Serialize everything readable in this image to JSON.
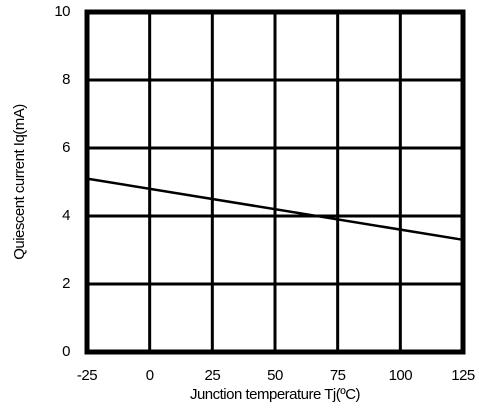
{
  "chart_data": {
    "type": "line",
    "x_label": "Junction temperature Tj(ºC)",
    "y_label": "Quiescent current Iq(mA)",
    "x": [
      -25,
      125
    ],
    "series": [
      {
        "color": "#000000",
        "values": [
          5.1,
          3.3
        ]
      }
    ],
    "xlim": [
      -25,
      125
    ],
    "xticks": [
      -25,
      0,
      25,
      50,
      75,
      100,
      125
    ],
    "ylim": [
      0,
      10
    ],
    "yticks": [
      0,
      2,
      4,
      6,
      8,
      10
    ],
    "grid": true
  }
}
